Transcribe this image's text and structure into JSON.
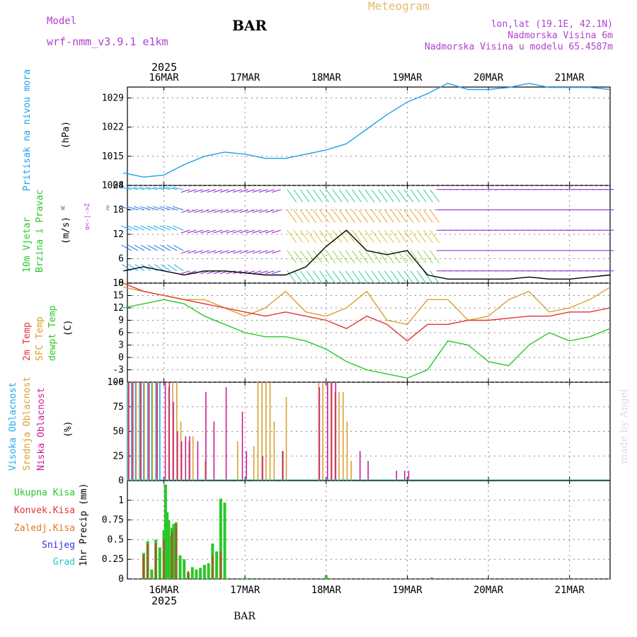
{
  "header": {
    "model_label": "Model",
    "model_name": "wrf-nmm_v3.9.1 e1km",
    "station_title": "BAR",
    "meteogram_label": "Meteogram",
    "location": "lon,lat (19.1E, 42.1N)",
    "elevation": "Nadmorska Visina 6m",
    "model_elevation": "Nadmorska Visina u modelu 65.4587m",
    "watermark": "made by Angel",
    "footer_station": "BAR"
  },
  "time_axis": {
    "year": "2025",
    "day_labels": [
      "16MAR",
      "17MAR",
      "18MAR",
      "19MAR",
      "20MAR",
      "21MAR"
    ]
  },
  "colors": {
    "pressure": "#1ea0e6",
    "t2m": "#e63232",
    "sfc": "#d9a030",
    "dewpt": "#28c828",
    "high_cloud": "#1eaaf0",
    "mid_cloud": "#d9a030",
    "low_cloud": "#c81e96",
    "precip_total": "#28c828",
    "precip_conv": "#e63232",
    "precip_frz": "#e6781e",
    "snow": "#3232e6",
    "graupel": "#28c8c8"
  },
  "chart_data": [
    {
      "type": "line",
      "panel": "pressure",
      "ylabel": "Pritisak na nivou mora",
      "units": "(hPa)",
      "yticks": [
        1008,
        1015,
        1022,
        1029
      ],
      "ylim": [
        1008,
        1031.6
      ],
      "series": [
        {
          "x": [
            15.5,
            15.75,
            16,
            16.25,
            16.5,
            16.75,
            17,
            17.25,
            17.5,
            17.75,
            18,
            18.25,
            18.5,
            18.75,
            19,
            19.25,
            19.5,
            19.75,
            20,
            20.25,
            20.5,
            20.75,
            21,
            21.25,
            21.5
          ],
          "values": [
            1011,
            1010,
            1010.5,
            1013,
            1015,
            1016,
            1015.5,
            1014.5,
            1014.5,
            1015.5,
            1016.5,
            1018,
            1021.5,
            1025,
            1028,
            1030,
            1032.5,
            1031,
            1031,
            1031.5,
            1032.5,
            1031.5,
            1031.5,
            1031.5,
            1031
          ]
        }
      ]
    },
    {
      "type": "line",
      "panel": "wind",
      "ylabel": "10m Vjetar Brzina i Pravac",
      "units": "(m/s)",
      "direction_legend": "N S W E",
      "yticks": [
        0,
        6,
        12,
        18,
        24
      ],
      "ylim": [
        0,
        24
      ],
      "series": [
        {
          "name": "10m Vjetar",
          "x": [
            15.5,
            15.75,
            16,
            16.25,
            16.5,
            16.75,
            17,
            17.25,
            17.5,
            17.75,
            18,
            18.25,
            18.5,
            18.75,
            19,
            19.25,
            19.5,
            19.75,
            20,
            20.25,
            20.5,
            20.75,
            21,
            21.25,
            21.5
          ],
          "values": [
            3,
            4,
            3,
            2,
            3,
            3,
            2.5,
            2,
            2,
            4,
            9,
            13,
            8,
            7,
            8,
            2,
            1,
            1,
            1,
            1,
            1.5,
            1,
            1,
            1.5,
            2
          ]
        }
      ]
    },
    {
      "type": "line",
      "panel": "temperature",
      "ylabel": "2m Temp SFC Temp dewpt Temp",
      "units": "(C)",
      "yticks": [
        -6,
        -3,
        0,
        3,
        6,
        9,
        12,
        15,
        18
      ],
      "ylim": [
        -6,
        18
      ],
      "series": [
        {
          "name": "2m Temp",
          "x": [
            15.5,
            15.75,
            16,
            16.25,
            16.5,
            16.75,
            17,
            17.25,
            17.5,
            17.75,
            18,
            18.25,
            18.5,
            18.75,
            19,
            19.25,
            19.5,
            19.75,
            20,
            20.25,
            20.5,
            20.75,
            21,
            21.25,
            21.5
          ],
          "values": [
            18,
            16,
            15,
            14,
            13,
            12,
            11,
            10,
            11,
            10,
            9,
            7,
            10,
            8,
            4,
            8,
            8,
            9,
            9,
            9.5,
            10,
            10,
            11,
            11,
            12
          ]
        },
        {
          "name": "SFC Temp",
          "x": [
            15.5,
            15.75,
            16,
            16.25,
            16.5,
            16.75,
            17,
            17.25,
            17.5,
            17.75,
            18,
            18.25,
            18.5,
            18.75,
            19,
            19.25,
            19.5,
            19.75,
            20,
            20.25,
            20.5,
            20.75,
            21,
            21.25,
            21.5
          ],
          "values": [
            17,
            16,
            15,
            14,
            14,
            12,
            10,
            12,
            16,
            11,
            10,
            12,
            16,
            9,
            8,
            14,
            14,
            9,
            10,
            14,
            16,
            11,
            12,
            14,
            17
          ]
        },
        {
          "name": "dewpt Temp",
          "x": [
            15.5,
            15.75,
            16,
            16.25,
            16.5,
            16.75,
            17,
            17.25,
            17.5,
            17.75,
            18,
            18.25,
            18.5,
            18.75,
            19,
            19.25,
            19.5,
            19.75,
            20,
            20.25,
            20.5,
            20.75,
            21,
            21.25,
            21.5
          ],
          "values": [
            12,
            13,
            14,
            13,
            10,
            8,
            6,
            5,
            5,
            4,
            2,
            -1,
            -3,
            -4,
            -5,
            -3,
            4,
            3,
            -1,
            -2,
            3,
            6,
            4,
            5,
            7
          ]
        }
      ]
    },
    {
      "type": "bar",
      "panel": "cloud",
      "ylabel": "Visoka Oblacnost Srednja Oblacnost Niska Oblacnost",
      "units": "(%)",
      "yticks": [
        0,
        25,
        50,
        75,
        100
      ],
      "ylim": [
        0,
        100
      ],
      "series": [
        {
          "name": "Visoka Oblacnost",
          "x": [
            15.55,
            15.6,
            15.65,
            15.7,
            15.75,
            15.8,
            15.85,
            15.9,
            15.95
          ],
          "values": [
            100,
            100,
            100,
            100,
            100,
            100,
            100,
            100,
            100
          ]
        },
        {
          "name": "Srednja Oblacnost",
          "x": [
            15.55,
            15.6,
            15.65,
            15.7,
            15.75,
            15.8,
            15.85,
            15.9,
            16.05,
            16.1,
            16.15,
            16.2,
            16.3,
            16.35,
            16.5,
            16.9,
            17.1,
            17.15,
            17.2,
            17.25,
            17.3,
            17.35,
            17.45,
            17.5,
            17.9,
            17.95,
            18.05,
            18.1,
            18.15,
            18.2,
            18.25,
            18.3
          ],
          "values": [
            100,
            100,
            100,
            100,
            100,
            100,
            100,
            100,
            95,
            100,
            100,
            60,
            40,
            45,
            20,
            40,
            35,
            100,
            100,
            100,
            100,
            60,
            30,
            85,
            100,
            100,
            100,
            90,
            90,
            90,
            60,
            20
          ]
        },
        {
          "name": "Niska Oblacnost",
          "x": [
            15.55,
            15.6,
            15.7,
            15.8,
            15.9,
            16,
            16.05,
            16.1,
            16.15,
            16.2,
            16.25,
            16.3,
            16.4,
            16.5,
            16.6,
            16.75,
            16.95,
            17,
            17.2,
            17.45,
            17.9,
            18,
            18.05,
            18.1,
            18.4,
            18.5,
            18.85,
            18.95,
            19
          ],
          "values": [
            100,
            100,
            100,
            100,
            100,
            100,
            100,
            80,
            50,
            40,
            45,
            45,
            40,
            90,
            60,
            95,
            70,
            30,
            25,
            30,
            95,
            100,
            100,
            100,
            30,
            20,
            10,
            10,
            10
          ]
        }
      ]
    },
    {
      "type": "bar",
      "panel": "precip",
      "ylabel": "1hr Precip (mm)",
      "legend": [
        "Ukupna Kisa",
        "Konvek.Kisa",
        "Zaledj.Kisa",
        "Snijeg",
        "Grad"
      ],
      "yticks": [
        0,
        0.25,
        0.5,
        0.75,
        1
      ],
      "ylim": [
        0,
        1.25
      ],
      "series": [
        {
          "name": "Ukupna Kisa",
          "x": [
            15.75,
            15.8,
            15.85,
            15.9,
            15.95,
            16,
            16.02,
            16.04,
            16.06,
            16.08,
            16.1,
            16.12,
            16.15,
            16.2,
            16.25,
            16.3,
            16.35,
            16.4,
            16.45,
            16.5,
            16.55,
            16.6,
            16.65,
            16.7,
            16.75,
            17.0,
            18.0,
            19.3
          ],
          "values": [
            0.33,
            0.48,
            0.12,
            0.5,
            0.4,
            0.62,
            1.2,
            0.85,
            0.75,
            0.55,
            0.65,
            0.7,
            0.72,
            0.3,
            0.25,
            0.08,
            0.15,
            0.12,
            0.14,
            0.18,
            0.2,
            0.45,
            0.35,
            1.02,
            0.97,
            0.02,
            0.05,
            0.02
          ]
        },
        {
          "name": "Konvek.Kisa",
          "x": [
            15.75,
            15.8,
            15.9,
            16,
            16.1,
            16.15,
            16.3,
            16.6,
            16.7
          ],
          "values": [
            0.3,
            0.45,
            0.45,
            0.5,
            0.6,
            0.7,
            0.1,
            0.3,
            0.35
          ]
        }
      ]
    }
  ]
}
